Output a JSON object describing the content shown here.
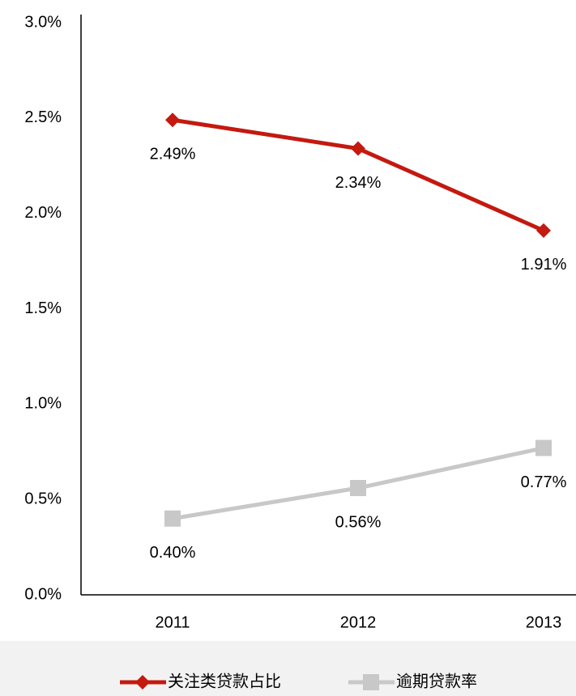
{
  "chart_data": {
    "type": "line",
    "categories": [
      "2011",
      "2012",
      "2013"
    ],
    "series": [
      {
        "name": "关注类贷款占比",
        "color": "#c4190f",
        "marker": "diamond",
        "values": [
          2.49,
          2.34,
          1.91
        ],
        "value_labels": [
          "2.49%",
          "2.34%",
          "1.91%"
        ]
      },
      {
        "name": "逾期贷款率",
        "color": "#c8c8c8",
        "marker": "square",
        "values": [
          0.4,
          0.56,
          0.77
        ],
        "value_labels": [
          "0.40%",
          "0.56%",
          "0.77%"
        ]
      }
    ],
    "ylim": [
      0,
      3
    ],
    "yticks": [
      {
        "value": 0,
        "label": "0.0%"
      },
      {
        "value": 0.5,
        "label": "0.5%"
      },
      {
        "value": 1,
        "label": "1.0%"
      },
      {
        "value": 1.5,
        "label": "1.5%"
      },
      {
        "value": 2,
        "label": "2.0%"
      },
      {
        "value": 2.5,
        "label": "2.5%"
      },
      {
        "value": 3,
        "label": "3.0%"
      }
    ],
    "grid": false,
    "legend": "bottom"
  }
}
